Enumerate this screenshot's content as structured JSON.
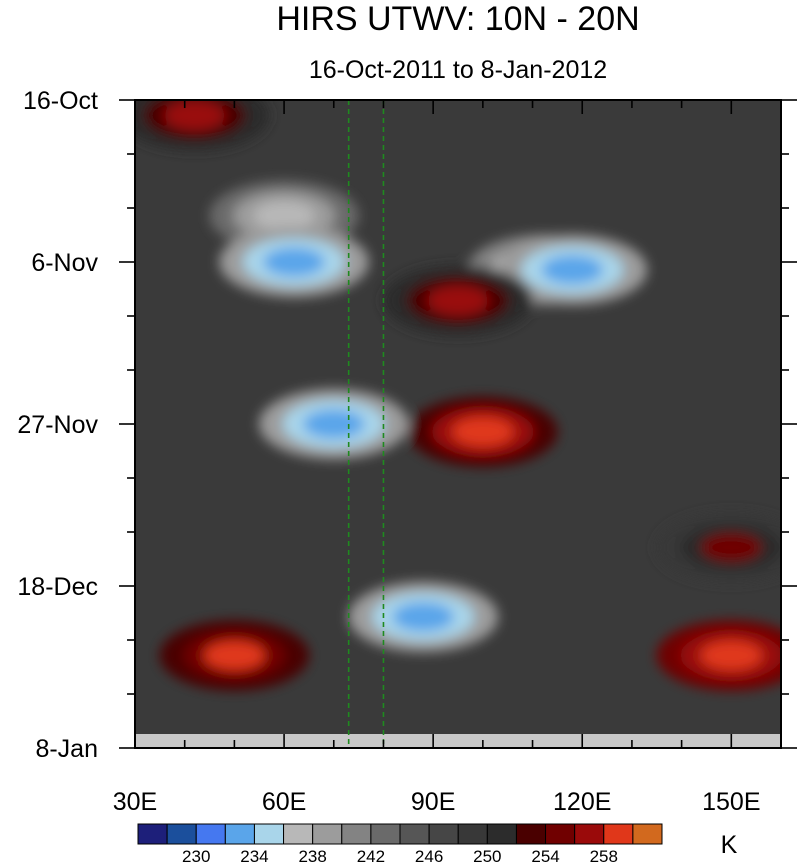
{
  "chart_data": {
    "type": "heatmap",
    "title": "HIRS UTWV: 10N - 20N",
    "subtitle": "16-Oct-2011 to 8-Jan-2012",
    "x_ticks": [
      "30E",
      "60E",
      "90E",
      "120E",
      "150E"
    ],
    "x_tick_values": [
      30,
      60,
      90,
      120,
      150
    ],
    "xlim": [
      30,
      160
    ],
    "y_ticks": [
      "16-Oct",
      "6-Nov",
      "27-Nov",
      "18-Dec",
      "8-Jan"
    ],
    "y_tick_days": [
      0,
      21,
      42,
      63,
      84
    ],
    "ylim_days": [
      0,
      84
    ],
    "reference_lines_lon": [
      73,
      80
    ],
    "colorbar": {
      "unit": "K",
      "labels": [
        "230",
        "234",
        "238",
        "242",
        "246",
        "250",
        "254",
        "258"
      ],
      "label_values": [
        230,
        234,
        238,
        242,
        246,
        250,
        254,
        258
      ],
      "levels": [
        228,
        230,
        232,
        234,
        236,
        238,
        240,
        242,
        244,
        246,
        248,
        250,
        252,
        254,
        256,
        258
      ],
      "colors": [
        "#1d1f7a",
        "#1b4f9c",
        "#4578f0",
        "#5aa5ea",
        "#a9d5ea",
        "#b8b8b8",
        "#9c9c9c",
        "#838383",
        "#6a6a6a",
        "#565656",
        "#464646",
        "#383838",
        "#2c2c2c",
        "#4a0000",
        "#700000",
        "#9a0a0a",
        "#e0371a",
        "#d2691e"
      ]
    },
    "features": [
      {
        "lon": 42,
        "day": 2,
        "value": 256
      },
      {
        "lon": 60,
        "day": 15,
        "value": 236
      },
      {
        "lon": 62,
        "day": 21,
        "value": 232
      },
      {
        "lon": 70,
        "day": 42,
        "value": 232
      },
      {
        "lon": 100,
        "day": 43,
        "value": 259
      },
      {
        "lon": 112,
        "day": 22,
        "value": 234
      },
      {
        "lon": 118,
        "day": 22,
        "value": 232
      },
      {
        "lon": 88,
        "day": 67,
        "value": 232
      },
      {
        "lon": 150,
        "day": 72,
        "value": 260
      },
      {
        "lon": 50,
        "day": 72,
        "value": 258
      },
      {
        "lon": 150,
        "day": 58,
        "value": 254
      },
      {
        "lon": 95,
        "day": 26,
        "value": 256
      }
    ]
  }
}
